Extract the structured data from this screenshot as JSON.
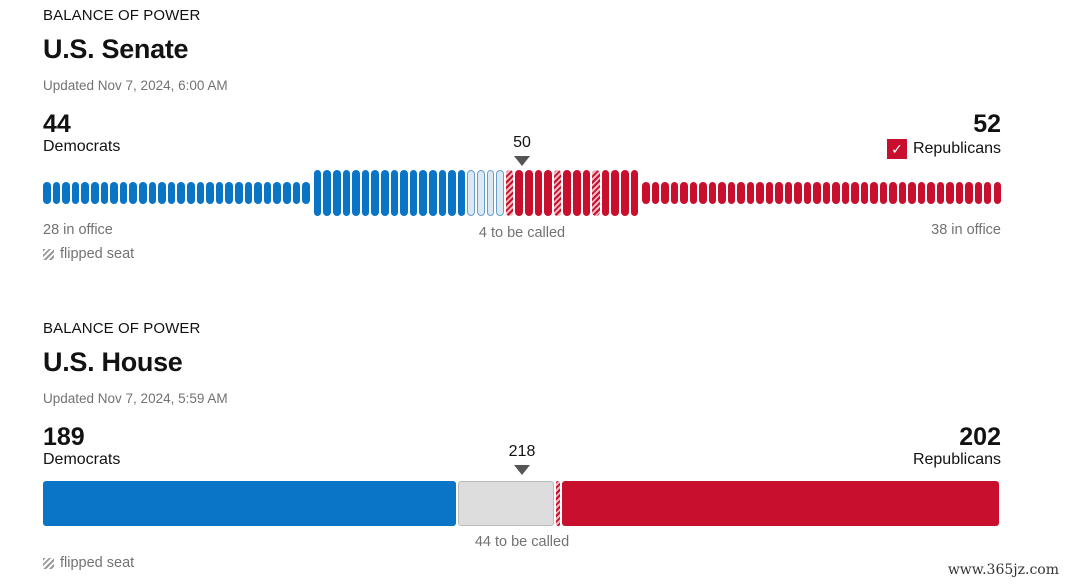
{
  "senate": {
    "eyebrow": "BALANCE OF POWER",
    "title": "U.S. Senate",
    "updated": "Updated  Nov 7, 2024, 6:00 AM",
    "dem_total": "44",
    "dem_label": "Democrats",
    "rep_total": "52",
    "rep_label": "Republicans",
    "threshold": "50",
    "dem_in_office": "28 in office",
    "to_be_called": "4 to be called",
    "rep_in_office": "38 in office",
    "flip_legend": "flipped seat",
    "check_mark": "✓",
    "seats": {
      "dem_in_office": 28,
      "dem_won": 16,
      "undecided": 4,
      "rep_won": 14,
      "rep_flipped_indices": [
        0,
        5,
        9
      ],
      "rep_in_office": 38
    }
  },
  "house": {
    "eyebrow": "BALANCE OF POWER",
    "title": "U.S. House",
    "updated": "Updated  Nov 7, 2024, 5:59 AM",
    "dem_total": "189",
    "dem_label": "Democrats",
    "rep_total": "202",
    "rep_label": "Republicans",
    "threshold": "218",
    "to_be_called": "44 to be called",
    "flip_legend": "flipped seat",
    "seats": {
      "dem": 189,
      "undecided": 44,
      "rep_flipped": 2,
      "rep": 200
    }
  },
  "colors": {
    "dem": "#0a74c6",
    "rep": "#c8102e",
    "undecided": "#dddddd"
  },
  "watermark": "www.365jz.com"
}
